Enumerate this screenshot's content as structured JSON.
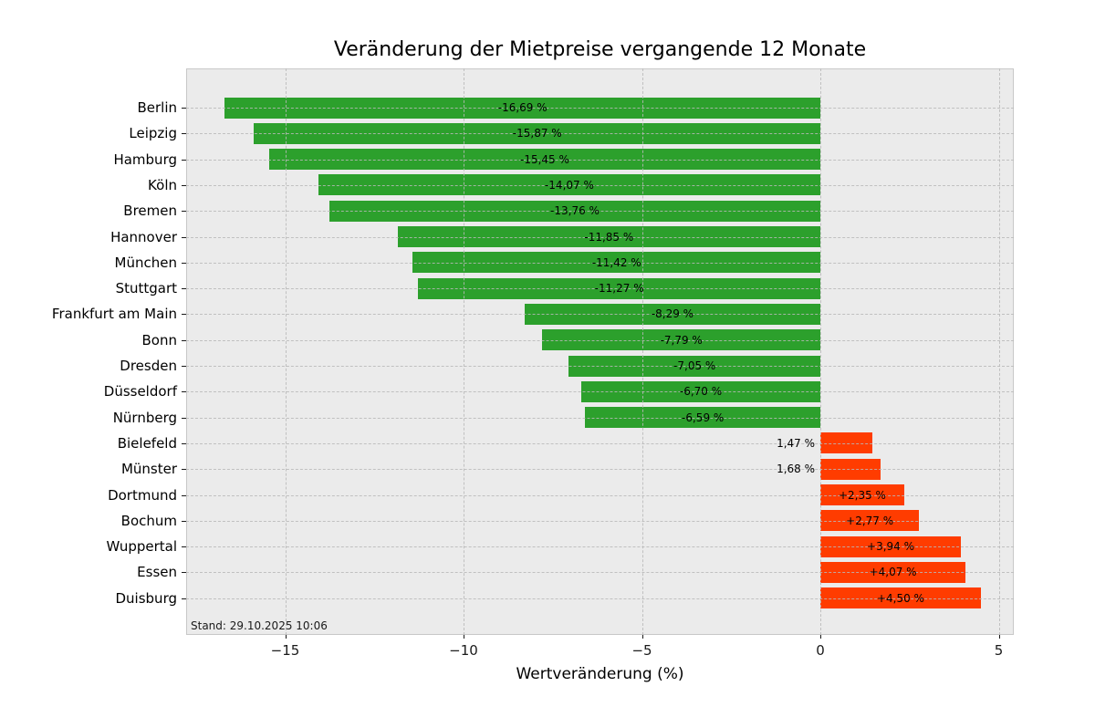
{
  "chart_data": {
    "type": "bar",
    "orientation": "horizontal",
    "title": "Veränderung der Mietpreise vergangende 12 Monate",
    "xlabel": "Wertveränderung (%)",
    "annotation": "Stand: 29.10.2025 10:06",
    "categories": [
      "Berlin",
      "Leipzig",
      "Hamburg",
      "Köln",
      "Bremen",
      "Hannover",
      "München",
      "Stuttgart",
      "Frankfurt am Main",
      "Bonn",
      "Dresden",
      "Düsseldorf",
      "Nürnberg",
      "Bielefeld",
      "Münster",
      "Dortmund",
      "Bochum",
      "Wuppertal",
      "Essen",
      "Duisburg"
    ],
    "values": [
      -16.69,
      -15.87,
      -15.45,
      -14.07,
      -13.76,
      -11.85,
      -11.42,
      -11.27,
      -8.29,
      -7.79,
      -7.05,
      -6.7,
      -6.59,
      1.47,
      1.68,
      2.35,
      2.77,
      3.94,
      4.07,
      4.5
    ],
    "value_labels": [
      "-16,69 %",
      "-15,87 %",
      "-15,45 %",
      "-14,07 %",
      "-13,76 %",
      "-11,85 %",
      "-11,42 %",
      "-11,27 %",
      "-8,29 %",
      "-7,79 %",
      "-7,05 %",
      "-6,70 %",
      "-6,59 %",
      "1,47 %",
      "1,68 %",
      "+2,35 %",
      "+2,77 %",
      "+3,94 %",
      "+4,07 %",
      "+4,50 %"
    ],
    "label_placement": [
      "inside",
      "inside",
      "inside",
      "inside",
      "inside",
      "inside",
      "inside",
      "inside",
      "inside",
      "inside",
      "inside",
      "inside",
      "inside",
      "outside",
      "outside",
      "inside",
      "inside",
      "inside",
      "inside",
      "inside"
    ],
    "x_ticks": [
      -15,
      -10,
      -5,
      0,
      5
    ],
    "x_tick_labels": [
      "−15",
      "−10",
      "−5",
      "0",
      "5"
    ],
    "xlim": [
      -17.77,
      5.42
    ],
    "grid": "dashed, both axes, above bars",
    "legend": "none",
    "colors": {
      "negative_bar": "#2ca02c",
      "positive_bar": "#ff3c00",
      "plot_background": "#ebebeb",
      "figure_background": "#ffffff",
      "gridline": "#b9b9b9",
      "text": "#000000"
    }
  }
}
